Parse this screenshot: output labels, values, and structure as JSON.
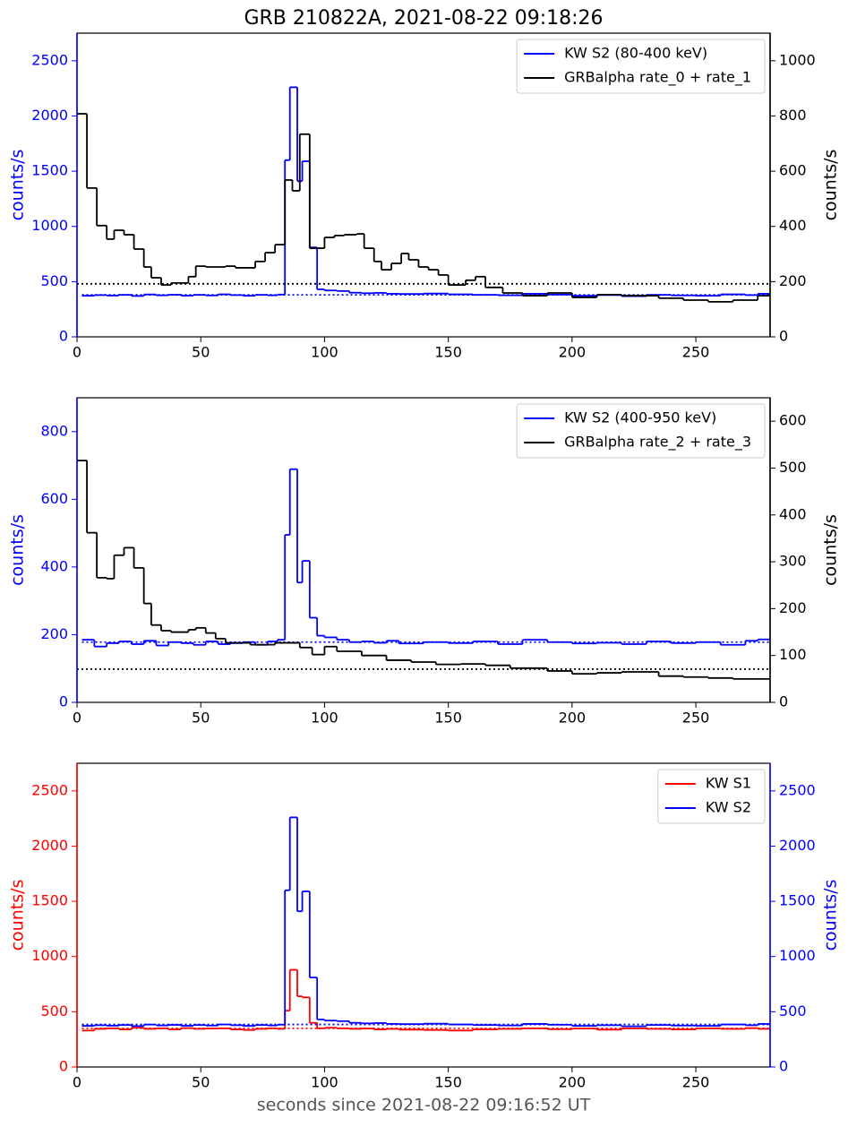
{
  "chart_data": [
    {
      "type": "step",
      "title": "GRB 210822A, 2021-08-22 09:18:26",
      "ylabel": "counts/s",
      "y2label": "counts/s",
      "ycolor": "#0000ff",
      "y2color": "#000000",
      "legend": "upper right",
      "xlim": [
        0,
        280
      ],
      "xticks": [
        0,
        50,
        100,
        150,
        200,
        250
      ],
      "ylim": [
        0,
        2750
      ],
      "yticks": [
        0,
        500,
        1000,
        1500,
        2000,
        2500
      ],
      "y2lim": [
        0,
        1100
      ],
      "y2ticks": [
        0,
        200,
        400,
        600,
        800,
        1000
      ],
      "series": [
        {
          "name": "KW S2 (80-400 keV)",
          "color": "#0000ff",
          "axis": "y",
          "background": 380,
          "x": [
            2,
            7,
            12,
            17,
            22,
            27,
            32,
            37,
            42,
            47,
            52,
            57,
            62,
            67,
            72,
            77,
            81,
            84,
            86,
            89,
            91,
            94,
            97,
            100,
            105,
            110,
            115,
            120,
            125,
            130,
            140,
            150,
            160,
            170,
            180,
            190,
            200,
            210,
            220,
            230,
            240,
            250,
            260,
            270,
            275
          ],
          "values": [
            372,
            378,
            374,
            380,
            370,
            384,
            376,
            381,
            373,
            380,
            375,
            385,
            378,
            372,
            380,
            376,
            383,
            1600,
            2260,
            1410,
            1590,
            810,
            430,
            420,
            415,
            400,
            395,
            398,
            390,
            388,
            392,
            385,
            380,
            376,
            390,
            382,
            372,
            378,
            368,
            380,
            375,
            372,
            385,
            378,
            390
          ]
        },
        {
          "name": "GRBalpha rate_0 + rate_1",
          "color": "#000000",
          "axis": "y2",
          "background": 192,
          "x": [
            0,
            4,
            8,
            12,
            15,
            19,
            23,
            27,
            30,
            34,
            38,
            45,
            48,
            52,
            60,
            64,
            72,
            76,
            80,
            84,
            87,
            90,
            94,
            100,
            104,
            108,
            113,
            116,
            120,
            123,
            127,
            131,
            134,
            138,
            142,
            146,
            150,
            157,
            161,
            165,
            172,
            180,
            190,
            200,
            210,
            220,
            235,
            245,
            255,
            265,
            275
          ],
          "values": [
            808,
            539,
            403,
            354,
            386,
            370,
            318,
            253,
            214,
            188,
            195,
            218,
            256,
            253,
            256,
            250,
            273,
            305,
            334,
            568,
            529,
            734,
            321,
            360,
            367,
            370,
            373,
            321,
            273,
            243,
            266,
            302,
            279,
            253,
            243,
            224,
            188,
            205,
            218,
            179,
            159,
            149,
            159,
            143,
            153,
            149,
            140,
            133,
            127,
            133,
            149
          ]
        }
      ]
    },
    {
      "type": "step",
      "ylabel": "counts/s",
      "y2label": "counts/s",
      "ycolor": "#0000ff",
      "y2color": "#000000",
      "legend": "upper right",
      "xlim": [
        0,
        280
      ],
      "xticks": [
        0,
        50,
        100,
        150,
        200,
        250
      ],
      "ylim": [
        0,
        900
      ],
      "yticks": [
        0,
        200,
        400,
        600,
        800
      ],
      "y2lim": [
        0,
        650
      ],
      "y2ticks": [
        0,
        100,
        200,
        300,
        400,
        500,
        600
      ],
      "series": [
        {
          "name": "KW S2 (400-950 keV)",
          "color": "#0000ff",
          "axis": "y",
          "background": 178,
          "x": [
            2,
            7,
            12,
            17,
            22,
            27,
            32,
            37,
            42,
            47,
            52,
            57,
            62,
            67,
            72,
            77,
            81,
            84,
            86,
            89,
            91,
            94,
            97,
            100,
            105,
            110,
            115,
            120,
            125,
            130,
            140,
            150,
            160,
            170,
            180,
            190,
            200,
            210,
            220,
            230,
            240,
            250,
            260,
            270,
            275
          ],
          "values": [
            185,
            165,
            175,
            180,
            172,
            182,
            168,
            178,
            175,
            170,
            180,
            172,
            175,
            178,
            170,
            180,
            185,
            495,
            689,
            354,
            418,
            250,
            197,
            192,
            185,
            178,
            180,
            176,
            182,
            174,
            178,
            175,
            180,
            172,
            185,
            178,
            174,
            176,
            172,
            180,
            175,
            178,
            170,
            182,
            186
          ]
        },
        {
          "name": "GRBalpha rate_2 + rate_3",
          "color": "#000000",
          "axis": "y2",
          "background": 71,
          "x": [
            0,
            4,
            8,
            12,
            15,
            19,
            23,
            27,
            30,
            34,
            38,
            45,
            48,
            52,
            56,
            60,
            70,
            80,
            90,
            95,
            100,
            105,
            115,
            125,
            135,
            145,
            155,
            165,
            175,
            190,
            200,
            210,
            220,
            235,
            245,
            255,
            265
          ],
          "values": [
            516,
            362,
            266,
            264,
            314,
            330,
            287,
            211,
            165,
            153,
            150,
            155,
            159,
            148,
            136,
            127,
            123,
            127,
            117,
            102,
            119,
            109,
            100,
            90,
            86,
            81,
            82,
            79,
            73,
            67,
            61,
            63,
            65,
            56,
            54,
            52,
            50
          ]
        }
      ]
    },
    {
      "type": "step",
      "xlabel": "seconds since 2021-08-22 09:16:52 UT",
      "ylabel": "counts/s",
      "y2label": "counts/s",
      "ycolor": "#ff0000",
      "y2color": "#0000ff",
      "legend": "upper right",
      "xlim": [
        0,
        280
      ],
      "xticks": [
        0,
        50,
        100,
        150,
        200,
        250
      ],
      "ylim": [
        0,
        2750
      ],
      "yticks": [
        0,
        500,
        1000,
        1500,
        2000,
        2500
      ],
      "y2lim": [
        0,
        2750
      ],
      "y2ticks": [
        0,
        500,
        1000,
        1500,
        2000,
        2500
      ],
      "series": [
        {
          "name": "KW S1",
          "color": "#ff0000",
          "axis": "y",
          "background": 350,
          "x": [
            2,
            7,
            12,
            17,
            22,
            27,
            32,
            37,
            42,
            47,
            52,
            57,
            62,
            67,
            72,
            77,
            81,
            84,
            86,
            89,
            91,
            94,
            97,
            100,
            105,
            110,
            115,
            120,
            125,
            130,
            140,
            150,
            160,
            170,
            180,
            190,
            200,
            210,
            220,
            230,
            240,
            250,
            260,
            270,
            275
          ],
          "values": [
            330,
            345,
            350,
            340,
            355,
            345,
            350,
            340,
            352,
            345,
            348,
            350,
            340,
            335,
            345,
            350,
            345,
            510,
            880,
            640,
            630,
            400,
            350,
            355,
            350,
            345,
            348,
            340,
            345,
            338,
            335,
            330,
            340,
            345,
            350,
            342,
            348,
            338,
            350,
            345,
            340,
            350,
            345,
            352,
            345
          ]
        },
        {
          "name": "KW S2",
          "color": "#0000ff",
          "axis": "y2",
          "background": 385,
          "x": [
            2,
            7,
            12,
            17,
            22,
            27,
            32,
            37,
            42,
            47,
            52,
            57,
            62,
            67,
            72,
            77,
            81,
            84,
            86,
            89,
            91,
            94,
            97,
            100,
            105,
            110,
            115,
            120,
            125,
            130,
            140,
            150,
            160,
            170,
            180,
            190,
            200,
            210,
            220,
            230,
            240,
            250,
            260,
            270,
            275
          ],
          "values": [
            372,
            378,
            374,
            380,
            370,
            384,
            376,
            381,
            373,
            380,
            375,
            385,
            378,
            372,
            380,
            376,
            383,
            1600,
            2260,
            1410,
            1590,
            810,
            430,
            420,
            415,
            400,
            395,
            398,
            390,
            388,
            392,
            385,
            380,
            376,
            390,
            382,
            372,
            378,
            368,
            380,
            375,
            372,
            385,
            378,
            390
          ]
        }
      ]
    }
  ]
}
